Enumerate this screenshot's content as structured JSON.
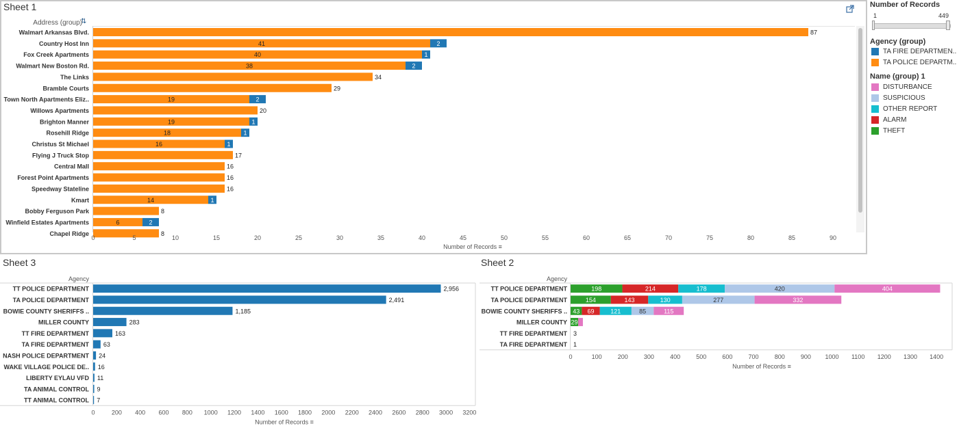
{
  "sheet1": {
    "title": "Sheet 1",
    "row_header": "Address (group)",
    "xlabel": "Number of Records"
  },
  "sheet2": {
    "title": "Sheet 2",
    "row_header": "Agency",
    "xlabel": "Number of Records"
  },
  "sheet3": {
    "title": "Sheet 3",
    "row_header": "Agency",
    "xlabel": "Number of Records"
  },
  "legend": {
    "records_title": "Number of Records",
    "records_min": "1",
    "records_max": "449",
    "agency_title": "Agency (group)",
    "agency_items": [
      {
        "label": "TA FIRE DEPARTMEN..",
        "color": "#2178b4"
      },
      {
        "label": "TA POLICE DEPARTM..",
        "color": "#ff8c12"
      }
    ],
    "name_title": "Name (group) 1",
    "name_items": [
      {
        "label": "DISTURBANCE",
        "color": "#e377c2"
      },
      {
        "label": "SUSPICIOUS",
        "color": "#aec7e8"
      },
      {
        "label": "OTHER REPORT",
        "color": "#17becf"
      },
      {
        "label": "ALARM",
        "color": "#d62728"
      },
      {
        "label": "THEFT",
        "color": "#2ca02c"
      }
    ]
  },
  "colors": {
    "police": "#ff8c12",
    "fire": "#2178b4",
    "theft": "#2ca02c",
    "alarm": "#d62728",
    "other": "#17becf",
    "suspicious": "#aec7e8",
    "disturbance": "#e377c2",
    "agency_bar": "#2178b4"
  },
  "chart_data": [
    {
      "id": "sheet1",
      "type": "bar",
      "orientation": "horizontal",
      "stacked": true,
      "title": "Sheet 1",
      "ylabel": "Address (group)",
      "xlabel": "Number of Records",
      "xlim": [
        0,
        92
      ],
      "xticks": [
        0,
        5,
        10,
        15,
        20,
        25,
        30,
        35,
        40,
        45,
        50,
        55,
        60,
        65,
        70,
        75,
        80,
        85,
        90
      ],
      "categories": [
        "Walmart Arkansas Blvd.",
        "Country Host Inn",
        "Fox Creek Apartments",
        "Walmart New Boston Rd.",
        "The Links",
        "Bramble Courts",
        "Town North Apartments Eliz..",
        "Willows Apartments",
        "Brighton Manner",
        "Rosehill Ridge",
        "Christus St Michael",
        "Flying J Truck Stop",
        "Central Mall",
        "Forest Point Apartments",
        "Speedway Stateline",
        "Kmart",
        "Bobby Ferguson Park",
        "Winfield Estates Apartments",
        "Chapel Ridge"
      ],
      "series": [
        {
          "name": "TA POLICE DEPARTM..",
          "color": "#ff8c12",
          "values": [
            87,
            41,
            40,
            38,
            34,
            29,
            19,
            20,
            19,
            18,
            16,
            17,
            16,
            16,
            16,
            14,
            8,
            6,
            8
          ]
        },
        {
          "name": "TA FIRE DEPARTMEN..",
          "color": "#2178b4",
          "values": [
            0,
            2,
            1,
            2,
            0,
            0,
            2,
            0,
            1,
            1,
            1,
            0,
            0,
            0,
            0,
            1,
            0,
            2,
            0
          ]
        }
      ],
      "label_mode": [
        "out",
        "in",
        "in",
        "in",
        "out",
        "out",
        "in",
        "out",
        "in",
        "in",
        "in",
        "out",
        "out",
        "out",
        "out",
        "in",
        "out",
        "in",
        "out"
      ]
    },
    {
      "id": "sheet3",
      "type": "bar",
      "orientation": "horizontal",
      "title": "Sheet 3",
      "ylabel": "Agency",
      "xlabel": "Number of Records",
      "xlim": [
        0,
        3250
      ],
      "xticks": [
        0,
        200,
        400,
        600,
        800,
        1000,
        1200,
        1400,
        1600,
        1800,
        2000,
        2200,
        2400,
        2600,
        2800,
        3000,
        3200
      ],
      "categories": [
        "TT POLICE DEPARTMENT",
        "TA POLICE DEPARTMENT",
        "BOWIE COUNTY SHERIFFS ..",
        "MILLER COUNTY",
        "TT FIRE DEPARTMENT",
        "TA FIRE DEPARTMENT",
        "NASH POLICE DEPARTMENT",
        "WAKE VILLAGE POLICE DE..",
        "LIBERTY EYLAU VFD",
        "TA ANIMAL CONTROL",
        "TT ANIMAL CONTROL"
      ],
      "values": [
        2956,
        2491,
        1185,
        283,
        163,
        63,
        24,
        16,
        11,
        9,
        7
      ],
      "value_labels": [
        "2,956",
        "2,491",
        "1,185",
        "283",
        "163",
        "63",
        "24",
        "16",
        "11",
        "9",
        "7"
      ]
    },
    {
      "id": "sheet2",
      "type": "bar",
      "orientation": "horizontal",
      "stacked": true,
      "title": "Sheet 2",
      "ylabel": "Agency",
      "xlabel": "Number of Records",
      "xlim": [
        0,
        1460
      ],
      "xticks": [
        0,
        100,
        200,
        300,
        400,
        500,
        600,
        700,
        800,
        900,
        1000,
        1100,
        1200,
        1300,
        1400
      ],
      "categories": [
        "TT POLICE DEPARTMENT",
        "TA POLICE DEPARTMENT",
        "BOWIE COUNTY SHERIFFS ..",
        "MILLER COUNTY",
        "TT FIRE DEPARTMENT",
        "TA FIRE DEPARTMENT"
      ],
      "series": [
        {
          "name": "THEFT",
          "color": "#2ca02c",
          "values": [
            198,
            154,
            43,
            29,
            0,
            0
          ]
        },
        {
          "name": "ALARM",
          "color": "#d62728",
          "values": [
            214,
            143,
            69,
            0,
            0,
            0
          ]
        },
        {
          "name": "OTHER REPORT",
          "color": "#17becf",
          "values": [
            178,
            130,
            121,
            0,
            0,
            0
          ]
        },
        {
          "name": "SUSPICIOUS",
          "color": "#aec7e8",
          "values": [
            420,
            277,
            85,
            0,
            0,
            0
          ]
        },
        {
          "name": "DISTURBANCE",
          "color": "#e377c2",
          "values": [
            404,
            332,
            115,
            18,
            0,
            0
          ]
        }
      ],
      "outside_labels": [
        "",
        "",
        "",
        "",
        "3",
        "1"
      ]
    }
  ]
}
